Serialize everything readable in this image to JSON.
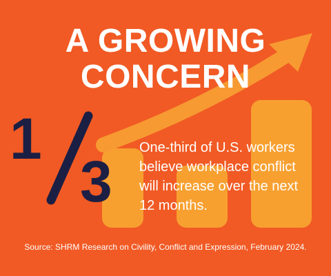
{
  "colors": {
    "background": "#f15a24",
    "bars": "#f7a030",
    "arrow": "#f79a32",
    "fraction": "#1c1f44",
    "text": "#ffffff"
  },
  "title": {
    "line1": "A GROWING",
    "line2": "CONCERN"
  },
  "stat": {
    "numerator": "1",
    "denominator": "3",
    "line1": "One-third of U.S. workers",
    "line2": "believe workplace conflict",
    "line3": "will increase over the next",
    "line4": "12 months."
  },
  "source": "Source: SHRM Research on Civility, Conflict and Expression, February 2024.",
  "icons": {
    "arrow": "trend-up-arrow-icon",
    "bars": "bar-chart-icon"
  }
}
